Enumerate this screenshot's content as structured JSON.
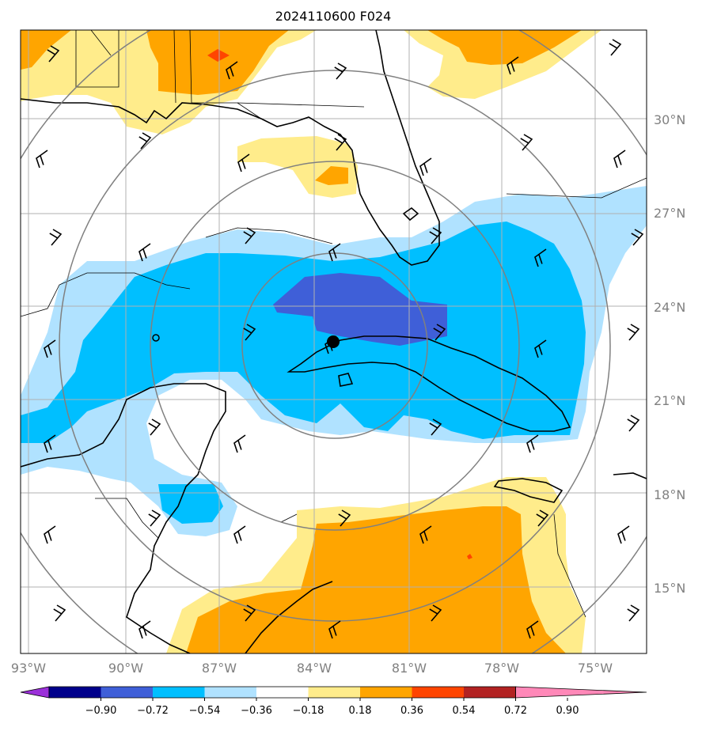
{
  "title": "2024110600 F024",
  "lat_labels": [
    "30°N",
    "27°N",
    "24°N",
    "21°N",
    "18°N",
    "15°N"
  ],
  "lon_labels": [
    "93°W",
    "90°W",
    "87°W",
    "84°W",
    "81°W",
    "78°W",
    "75°W"
  ],
  "colorbar": {
    "ticks": [
      "−0.90",
      "−0.72",
      "−0.54",
      "−0.36",
      "−0.18",
      "0.18",
      "0.36",
      "0.54",
      "0.72",
      "0.90"
    ],
    "colors": [
      "#9b30d9",
      "#00008b",
      "#3f5fd8",
      "#00bfff",
      "#b0e2ff",
      "#ffffff",
      "#ffec8b",
      "#ffa500",
      "#ff4500",
      "#b22222",
      "#ff88b8"
    ]
  },
  "map": {
    "storm_center": {
      "lat": 23.0,
      "lon": -83.0
    },
    "field_colors": {
      "weak_negative": "#b0e2ff",
      "moderate_negative": "#00bfff",
      "strong_negative": "#3f5fd8",
      "weak_positive": "#ffec8b",
      "moderate_positive": "#ffa500",
      "strong_positive": "#ff4500"
    }
  }
}
